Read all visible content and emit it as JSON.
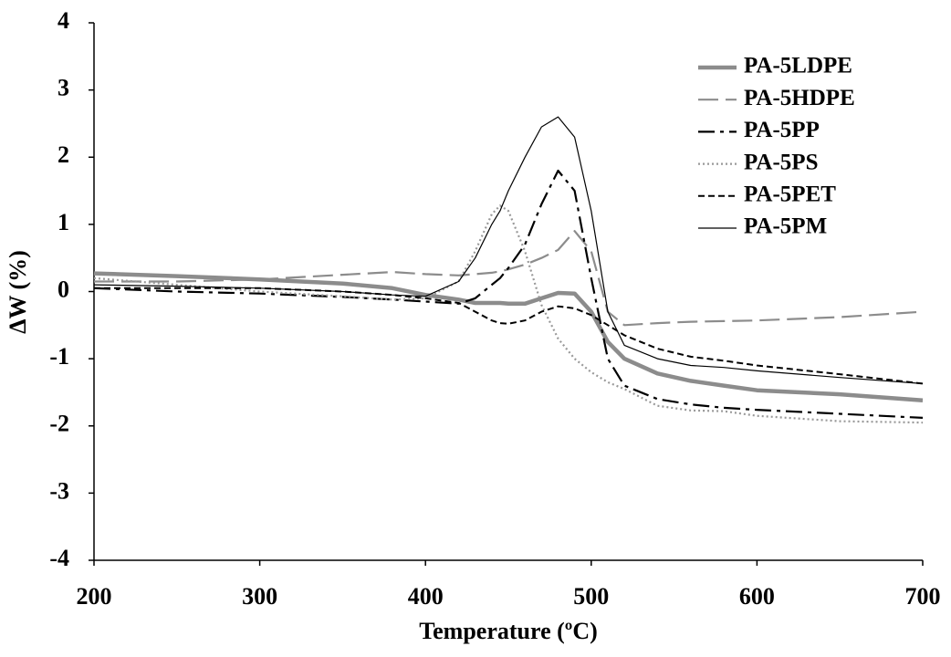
{
  "chart_data": {
    "type": "line",
    "x_label": "Temperature (ºC)",
    "y_label": "ΔW (%)",
    "x": [
      200,
      250,
      300,
      350,
      380,
      400,
      420,
      430,
      440,
      445,
      450,
      460,
      470,
      480,
      490,
      500,
      510,
      520,
      540,
      560,
      580,
      600,
      650,
      700
    ],
    "xlim": [
      200,
      700
    ],
    "xticks": [
      200,
      300,
      400,
      500,
      600,
      700
    ],
    "ylim": [
      -4,
      4
    ],
    "yticks": [
      -4,
      -3,
      -2,
      -1,
      0,
      1,
      2,
      3,
      4
    ],
    "grid": false,
    "legend": "upper right",
    "series": [
      {
        "name": "PA-5LDPE",
        "color": "#8c8c8c",
        "values": [
          0.27,
          0.23,
          0.18,
          0.12,
          0.05,
          -0.05,
          -0.12,
          -0.17,
          -0.17,
          -0.17,
          -0.18,
          -0.18,
          -0.1,
          -0.02,
          -0.03,
          -0.3,
          -0.75,
          -1.0,
          -1.22,
          -1.33,
          -1.4,
          -1.47,
          -1.53,
          -1.62
        ]
      },
      {
        "name": "PA-5HDPE",
        "color": "#8c8c8c",
        "values": [
          0.15,
          0.15,
          0.18,
          0.25,
          0.29,
          0.26,
          0.24,
          0.26,
          0.28,
          0.3,
          0.33,
          0.4,
          0.5,
          0.62,
          0.9,
          0.6,
          -0.3,
          -0.5,
          -0.47,
          -0.45,
          -0.44,
          -0.43,
          -0.38,
          -0.3
        ]
      },
      {
        "name": "PA-5PP",
        "color": "#000000",
        "values": [
          0.05,
          0.0,
          -0.03,
          -0.08,
          -0.12,
          -0.15,
          -0.18,
          -0.1,
          0.1,
          0.2,
          0.35,
          0.7,
          1.3,
          1.8,
          1.5,
          0.2,
          -1.0,
          -1.4,
          -1.6,
          -1.68,
          -1.73,
          -1.76,
          -1.82,
          -1.88
        ]
      },
      {
        "name": "PA-5PS",
        "color": "#999999",
        "values": [
          0.2,
          0.1,
          0.0,
          -0.07,
          -0.12,
          -0.1,
          0.15,
          0.6,
          1.15,
          1.28,
          1.2,
          0.6,
          -0.2,
          -0.7,
          -1.0,
          -1.2,
          -1.35,
          -1.45,
          -1.7,
          -1.77,
          -1.78,
          -1.85,
          -1.93,
          -1.95
        ]
      },
      {
        "name": "PA-5PET",
        "color": "#000000",
        "values": [
          0.05,
          0.05,
          0.05,
          0.0,
          -0.05,
          -0.1,
          -0.17,
          -0.3,
          -0.43,
          -0.47,
          -0.48,
          -0.43,
          -0.3,
          -0.22,
          -0.25,
          -0.35,
          -0.5,
          -0.65,
          -0.85,
          -0.97,
          -1.03,
          -1.1,
          -1.23,
          -1.37
        ]
      },
      {
        "name": "PA-5PM",
        "color": "#000000",
        "values": [
          0.1,
          0.08,
          0.05,
          0.0,
          -0.05,
          -0.07,
          0.15,
          0.5,
          1.0,
          1.2,
          1.5,
          2.0,
          2.45,
          2.6,
          2.3,
          1.2,
          -0.3,
          -0.8,
          -1.0,
          -1.1,
          -1.13,
          -1.18,
          -1.28,
          -1.37
        ]
      }
    ]
  }
}
